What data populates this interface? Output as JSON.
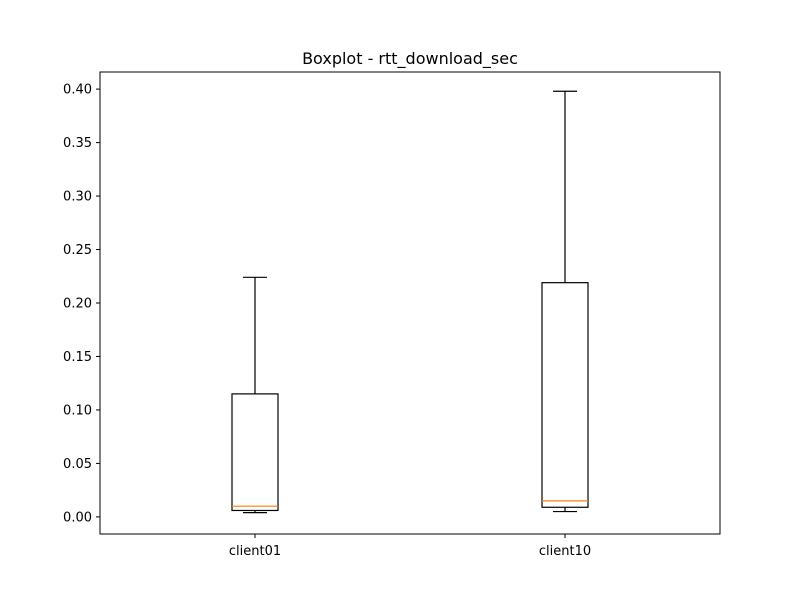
{
  "chart_data": {
    "type": "boxplot",
    "title": "Boxplot - rtt_download_sec",
    "xlabel": "",
    "ylabel": "",
    "ylim": [
      -0.016,
      0.416
    ],
    "yticks": [
      "0.00",
      "0.05",
      "0.10",
      "0.15",
      "0.20",
      "0.25",
      "0.30",
      "0.35",
      "0.40"
    ],
    "ytick_values": [
      0.0,
      0.05,
      0.1,
      0.15,
      0.2,
      0.25,
      0.3,
      0.35,
      0.4
    ],
    "categories": [
      "client01",
      "client10"
    ],
    "boxes": [
      {
        "label": "client01",
        "whisker_low": 0.004,
        "q1": 0.006,
        "median": 0.01,
        "q3": 0.115,
        "whisker_high": 0.224
      },
      {
        "label": "client10",
        "whisker_low": 0.005,
        "q1": 0.009,
        "median": 0.015,
        "q3": 0.219,
        "whisker_high": 0.398
      }
    ],
    "grid": false,
    "legend": "none",
    "colors": {
      "box": "#000000",
      "median": "#ff7f0e",
      "whisker": "#000000"
    }
  }
}
